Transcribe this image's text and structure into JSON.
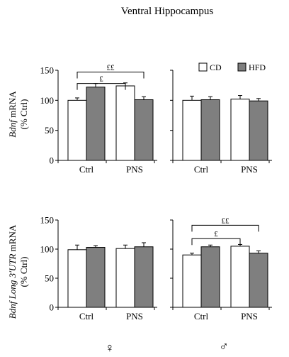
{
  "figure": {
    "title": "Ventral Hippocampus",
    "sex_symbols": [
      "♀",
      "♂"
    ]
  },
  "legend": {
    "entries": [
      {
        "name": "CD",
        "color": "#ffffff"
      },
      {
        "name": "HFD",
        "color": "#7f7f7f"
      }
    ],
    "placement": "top-right of upper-right panel"
  },
  "chart_data": [
    {
      "type": "bar",
      "panel": "top-left",
      "title": "",
      "ylabel_gene": "Bdnf",
      "ylabel_rest": " mRNA",
      "ylabel_unit": "(% Ctrl)",
      "categories": [
        "Ctrl",
        "PNS"
      ],
      "series": [
        {
          "name": "CD",
          "values": [
            100,
            124
          ],
          "errors": [
            4,
            5
          ],
          "color": "#ffffff"
        },
        {
          "name": "HFD",
          "values": [
            122,
            101
          ],
          "errors": [
            6,
            5
          ],
          "color": "#7f7f7f"
        }
      ],
      "ylim": [
        0,
        150
      ],
      "yticks": [
        0,
        50,
        100,
        150
      ],
      "grid": false,
      "annotations": [
        {
          "label": "££",
          "from": "Ctrl-CD",
          "to": "PNS-HFD",
          "level": 147
        },
        {
          "label": "£",
          "from": "Ctrl-CD",
          "to": "PNS-CD",
          "level": 128
        }
      ]
    },
    {
      "type": "bar",
      "panel": "top-right",
      "title": "",
      "categories": [
        "Ctrl",
        "PNS"
      ],
      "series": [
        {
          "name": "CD",
          "values": [
            100,
            102
          ],
          "errors": [
            7,
            6
          ],
          "color": "#ffffff"
        },
        {
          "name": "HFD",
          "values": [
            101,
            99
          ],
          "errors": [
            5,
            4
          ],
          "color": "#7f7f7f"
        }
      ],
      "ylim": [
        0,
        150
      ],
      "yticks": [
        0,
        50,
        100,
        150
      ],
      "grid": false,
      "annotations": []
    },
    {
      "type": "bar",
      "panel": "bottom-left",
      "title": "",
      "ylabel_gene": "Bdnf Long 3'UTR",
      "ylabel_rest": " mRNA",
      "ylabel_unit": "(% Ctrl)",
      "categories": [
        "Ctrl",
        "PNS"
      ],
      "series": [
        {
          "name": "CD",
          "values": [
            99,
            101
          ],
          "errors": [
            8,
            6
          ],
          "color": "#ffffff"
        },
        {
          "name": "HFD",
          "values": [
            103,
            104
          ],
          "errors": [
            3,
            7
          ],
          "color": "#7f7f7f"
        }
      ],
      "ylim": [
        0,
        150
      ],
      "yticks": [
        0,
        50,
        100,
        150
      ],
      "grid": false,
      "annotations": []
    },
    {
      "type": "bar",
      "panel": "bottom-right",
      "title": "",
      "categories": [
        "Ctrl",
        "PNS"
      ],
      "series": [
        {
          "name": "CD",
          "values": [
            90,
            105
          ],
          "errors": [
            3,
            3
          ],
          "color": "#ffffff"
        },
        {
          "name": "HFD",
          "values": [
            104,
            93
          ],
          "errors": [
            3,
            4
          ],
          "color": "#7f7f7f"
        }
      ],
      "ylim": [
        0,
        150
      ],
      "yticks": [
        0,
        50,
        100,
        150
      ],
      "grid": false,
      "annotations": [
        {
          "label": "££",
          "from": "Ctrl-CD",
          "to": "PNS-HFD",
          "level": 141
        },
        {
          "label": "£",
          "from": "Ctrl-CD",
          "to": "PNS-CD",
          "level": 118
        }
      ]
    }
  ]
}
